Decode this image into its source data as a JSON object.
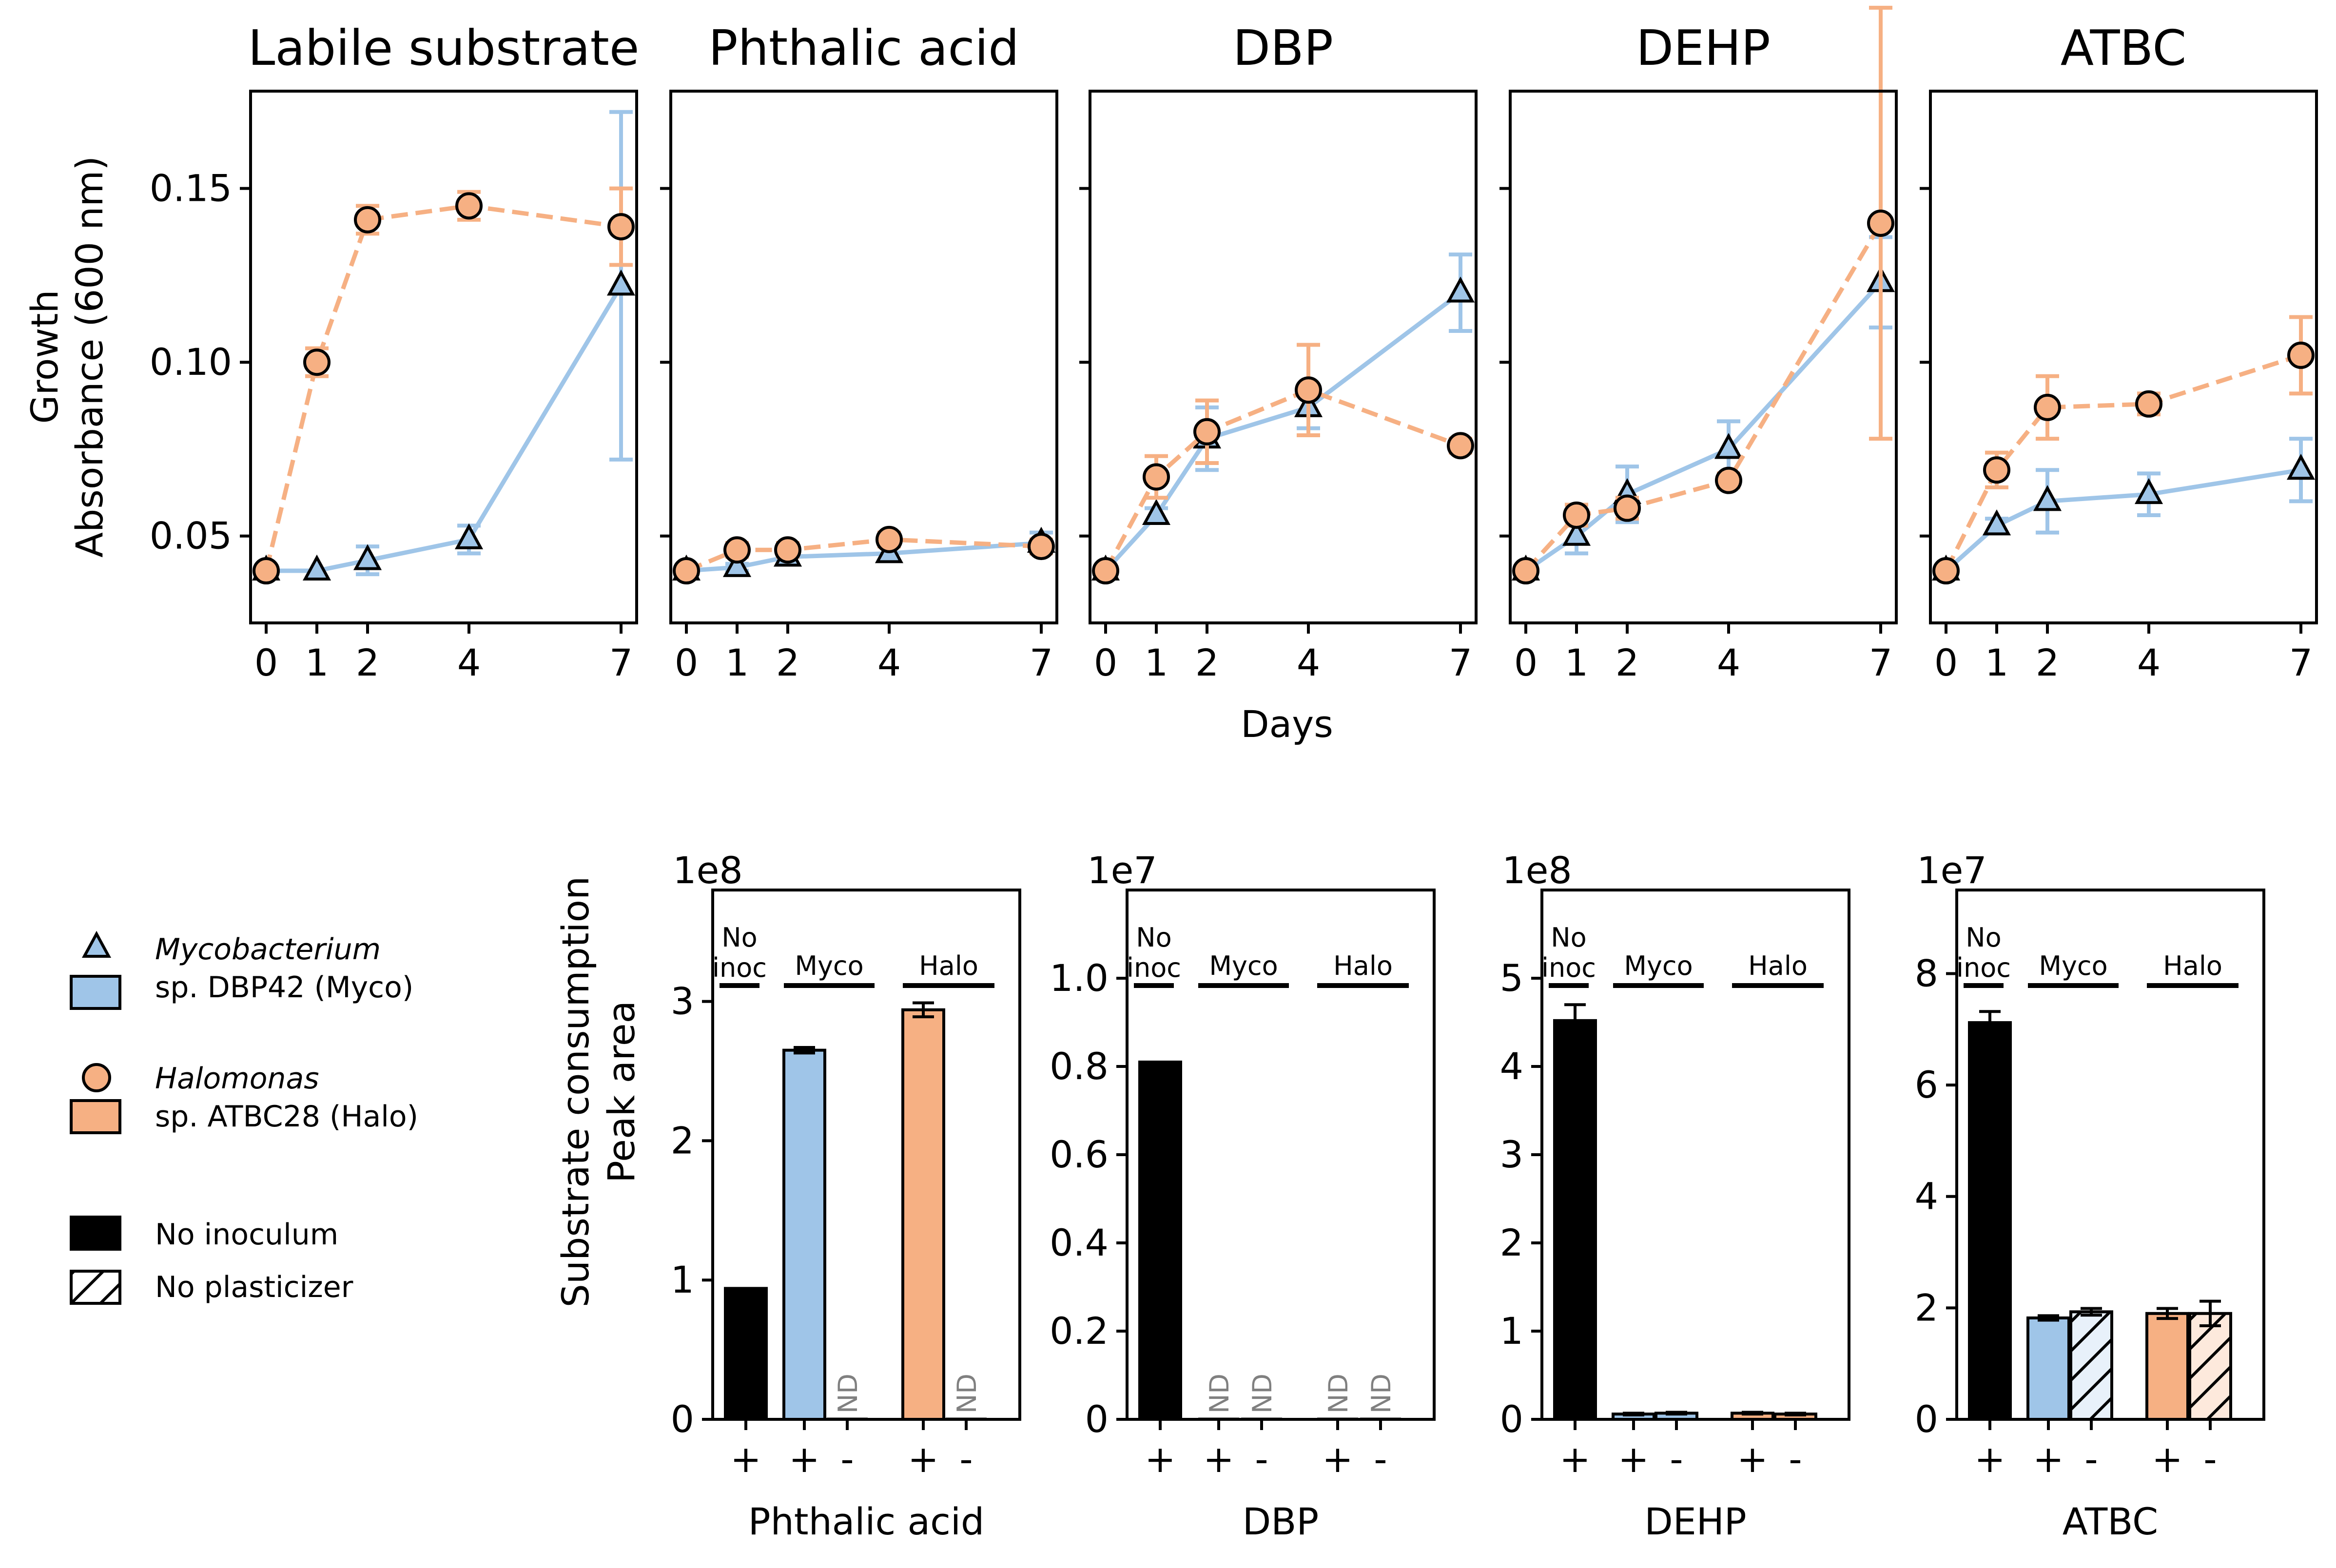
{
  "colors": {
    "myco": "#9fc5e8",
    "halo": "#f6b083",
    "no_inoculum": "#000000",
    "error_myco": "#9fc5e8",
    "error_halo": "#f6b083"
  },
  "growth": {
    "ylabel_line1": "Growth",
    "ylabel_line2": "Absorbance (600 nm)",
    "xlabel": "Days"
  },
  "consumption": {
    "ylabel_line1": "Substrate consumption",
    "ylabel_line2": "Peak area"
  },
  "legend": {
    "myco_italic": "Mycobacterium",
    "myco_rest": "sp. DBP42 (Myco)",
    "halo_italic": "Halomonas",
    "halo_rest": "sp. ATBC28 (Halo)",
    "no_inoculum": "No inoculum",
    "no_plasticizer": "No plasticizer"
  },
  "chart_data": [
    {
      "type": "line",
      "title": "Labile substrate",
      "x": [
        0,
        1,
        2,
        4,
        7
      ],
      "xticks": [
        "0",
        "1",
        "2",
        "4",
        "7"
      ],
      "ylim": [
        0.025,
        0.178
      ],
      "yticks": [
        0.05,
        0.1,
        0.15
      ],
      "ytick_labels": [
        "0.05",
        "0.10",
        "0.15"
      ],
      "series": [
        {
          "key": "myco",
          "marker": "triangle",
          "values": [
            0.04,
            0.04,
            0.043,
            0.049,
            0.122
          ],
          "errors": [
            0.0,
            0.0,
            0.004,
            0.004,
            0.05
          ]
        },
        {
          "key": "halo",
          "marker": "circle",
          "values": [
            0.04,
            0.1,
            0.141,
            0.145,
            0.139
          ],
          "errors": [
            0.0,
            0.004,
            0.004,
            0.004,
            0.011
          ]
        }
      ]
    },
    {
      "type": "line",
      "title": "Phthalic acid",
      "x": [
        0,
        1,
        2,
        4,
        7
      ],
      "xticks": [
        "0",
        "1",
        "2",
        "4",
        "7"
      ],
      "ylim": [
        0.025,
        0.178
      ],
      "yticks": [
        0.05,
        0.1,
        0.15
      ],
      "ytick_labels": [
        "",
        "",
        ""
      ],
      "series": [
        {
          "key": "myco",
          "marker": "triangle",
          "values": [
            0.04,
            0.041,
            0.044,
            0.045,
            0.048
          ],
          "errors": [
            0.0,
            0.001,
            0.002,
            0.002,
            0.003
          ]
        },
        {
          "key": "halo",
          "marker": "circle",
          "values": [
            0.04,
            0.046,
            0.046,
            0.049,
            0.047
          ],
          "errors": [
            0.0,
            0.002,
            0.002,
            0.002,
            0.002
          ]
        }
      ]
    },
    {
      "type": "line",
      "title": "DBP",
      "x": [
        0,
        1,
        2,
        4,
        7
      ],
      "xticks": [
        "0",
        "1",
        "2",
        "4",
        "7"
      ],
      "ylim": [
        0.025,
        0.178
      ],
      "yticks": [
        0.05,
        0.1,
        0.15
      ],
      "ytick_labels": [
        "",
        "",
        ""
      ],
      "series": [
        {
          "key": "myco",
          "marker": "triangle",
          "values": [
            0.04,
            0.056,
            0.078,
            0.087,
            0.12
          ],
          "errors": [
            0.0,
            0.002,
            0.009,
            0.006,
            0.011
          ]
        },
        {
          "key": "halo",
          "marker": "circle",
          "values": [
            0.04,
            0.067,
            0.08,
            0.092,
            0.076
          ],
          "errors": [
            0.0,
            0.006,
            0.009,
            0.013,
            0.002
          ]
        }
      ]
    },
    {
      "type": "line",
      "title": "DEHP",
      "x": [
        0,
        1,
        2,
        4,
        7
      ],
      "xticks": [
        "0",
        "1",
        "2",
        "4",
        "7"
      ],
      "ylim": [
        0.025,
        0.178
      ],
      "yticks": [
        0.05,
        0.1,
        0.15
      ],
      "ytick_labels": [
        "",
        "",
        ""
      ],
      "series": [
        {
          "key": "myco",
          "marker": "triangle",
          "values": [
            0.04,
            0.05,
            0.062,
            0.075,
            0.123
          ],
          "errors": [
            0.0,
            0.005,
            0.008,
            0.008,
            0.013
          ]
        },
        {
          "key": "halo",
          "marker": "circle",
          "values": [
            0.04,
            0.056,
            0.058,
            0.066,
            0.14
          ],
          "errors": [
            0.0,
            0.003,
            0.003,
            0.002,
            0.062
          ]
        }
      ]
    },
    {
      "type": "line",
      "title": "ATBC",
      "x": [
        0,
        1,
        2,
        4,
        7
      ],
      "xticks": [
        "0",
        "1",
        "2",
        "4",
        "7"
      ],
      "ylim": [
        0.025,
        0.178
      ],
      "yticks": [
        0.05,
        0.1,
        0.15
      ],
      "ytick_labels": [
        "",
        "",
        ""
      ],
      "series": [
        {
          "key": "myco",
          "marker": "triangle",
          "values": [
            0.04,
            0.053,
            0.06,
            0.062,
            0.069
          ],
          "errors": [
            0.0,
            0.002,
            0.009,
            0.006,
            0.009
          ]
        },
        {
          "key": "halo",
          "marker": "circle",
          "values": [
            0.04,
            0.069,
            0.087,
            0.088,
            0.102
          ],
          "errors": [
            0.0,
            0.005,
            0.009,
            0.003,
            0.011
          ]
        }
      ]
    },
    {
      "type": "bar",
      "xlabel": "Phthalic acid",
      "exponent": "1e8",
      "ylim": [
        0,
        3.8
      ],
      "yticks": [
        0,
        1,
        2,
        3
      ],
      "ytick_labels": [
        "0",
        "1",
        "2",
        "3"
      ],
      "groups": [
        {
          "label_line1": "No",
          "label_line2": "inoc"
        },
        {
          "label_line1": "Myco",
          "label_line2": ""
        },
        {
          "label_line1": "Halo",
          "label_line2": ""
        }
      ],
      "bars": [
        {
          "group": 0,
          "condition": "+",
          "fill": "no_inoculum",
          "value": 0.94,
          "error": 0.0,
          "nd": false
        },
        {
          "group": 1,
          "condition": "+",
          "fill": "myco",
          "value": 2.65,
          "error": 0.02,
          "nd": false
        },
        {
          "group": 1,
          "condition": "-",
          "fill": "myco",
          "value": 0,
          "error": 0,
          "nd": true,
          "nd_label": "ND"
        },
        {
          "group": 2,
          "condition": "+",
          "fill": "halo",
          "value": 2.94,
          "error": 0.05,
          "nd": false
        },
        {
          "group": 2,
          "condition": "-",
          "fill": "halo",
          "value": 0,
          "error": 0,
          "nd": true,
          "nd_label": "ND"
        }
      ],
      "tick_conditions": [
        "+",
        "+",
        "-",
        "+",
        "-"
      ]
    },
    {
      "type": "bar",
      "xlabel": "DBP",
      "exponent": "1e7",
      "ylim": [
        0,
        1.2
      ],
      "yticks": [
        0,
        0.2,
        0.4,
        0.6,
        0.8,
        1.0
      ],
      "ytick_labels": [
        "0",
        "0.2",
        "0.4",
        "0.6",
        "0.8",
        "1.0"
      ],
      "groups": [
        {
          "label_line1": "No",
          "label_line2": "inoc"
        },
        {
          "label_line1": "Myco",
          "label_line2": ""
        },
        {
          "label_line1": "Halo",
          "label_line2": ""
        }
      ],
      "bars": [
        {
          "group": 0,
          "condition": "+",
          "fill": "no_inoculum",
          "value": 0.81,
          "error": 0.0,
          "nd": false
        },
        {
          "group": 1,
          "condition": "+",
          "fill": "myco",
          "value": 0,
          "error": 0,
          "nd": true,
          "nd_label": "ND"
        },
        {
          "group": 1,
          "condition": "-",
          "fill": "myco",
          "value": 0,
          "error": 0,
          "nd": true,
          "nd_label": "ND"
        },
        {
          "group": 2,
          "condition": "+",
          "fill": "halo",
          "value": 0,
          "error": 0,
          "nd": true,
          "nd_label": "ND"
        },
        {
          "group": 2,
          "condition": "-",
          "fill": "halo",
          "value": 0,
          "error": 0,
          "nd": true,
          "nd_label": "ND"
        }
      ],
      "tick_conditions": [
        "+",
        "+",
        "-",
        "+",
        "-"
      ]
    },
    {
      "type": "bar",
      "xlabel": "DEHP",
      "exponent": "1e8",
      "ylim": [
        0,
        6.0
      ],
      "yticks": [
        0,
        1,
        2,
        3,
        4,
        5
      ],
      "ytick_labels": [
        "0",
        "1",
        "2",
        "3",
        "4",
        "5"
      ],
      "groups": [
        {
          "label_line1": "No",
          "label_line2": "inoc"
        },
        {
          "label_line1": "Myco",
          "label_line2": ""
        },
        {
          "label_line1": "Halo",
          "label_line2": ""
        }
      ],
      "bars": [
        {
          "group": 0,
          "condition": "+",
          "fill": "no_inoculum",
          "value": 4.52,
          "error": 0.18,
          "nd": false
        },
        {
          "group": 1,
          "condition": "+",
          "fill": "myco",
          "value": 0.06,
          "error": 0.01,
          "nd": false
        },
        {
          "group": 1,
          "condition": "-",
          "fill": "myco",
          "value": 0.07,
          "error": 0.01,
          "nd": false
        },
        {
          "group": 2,
          "condition": "+",
          "fill": "halo",
          "value": 0.07,
          "error": 0.01,
          "nd": false
        },
        {
          "group": 2,
          "condition": "-",
          "fill": "halo",
          "value": 0.06,
          "error": 0.01,
          "nd": false
        }
      ],
      "tick_conditions": [
        "+",
        "+",
        "-",
        "+",
        "-"
      ]
    },
    {
      "type": "bar",
      "xlabel": "ATBC",
      "exponent": "1e7",
      "ylim": [
        0,
        9.5
      ],
      "yticks": [
        0,
        2,
        4,
        6,
        8
      ],
      "ytick_labels": [
        "0",
        "2",
        "4",
        "6",
        "8"
      ],
      "groups": [
        {
          "label_line1": "No",
          "label_line2": "inoc"
        },
        {
          "label_line1": "Myco",
          "label_line2": ""
        },
        {
          "label_line1": "Halo",
          "label_line2": ""
        }
      ],
      "bars": [
        {
          "group": 0,
          "condition": "+",
          "fill": "no_inoculum",
          "value": 7.12,
          "error": 0.2,
          "nd": false
        },
        {
          "group": 1,
          "condition": "+",
          "fill": "myco",
          "value": 1.82,
          "error": 0.04,
          "nd": false
        },
        {
          "group": 1,
          "condition": "-",
          "fill": "myco",
          "value": 1.93,
          "error": 0.06,
          "nd": false,
          "hatch": true
        },
        {
          "group": 2,
          "condition": "+",
          "fill": "halo",
          "value": 1.9,
          "error": 0.09,
          "nd": false
        },
        {
          "group": 2,
          "condition": "-",
          "fill": "halo",
          "value": 1.9,
          "error": 0.22,
          "nd": false,
          "hatch": true
        }
      ],
      "tick_conditions": [
        "+",
        "+",
        "-",
        "+",
        "-"
      ]
    }
  ]
}
